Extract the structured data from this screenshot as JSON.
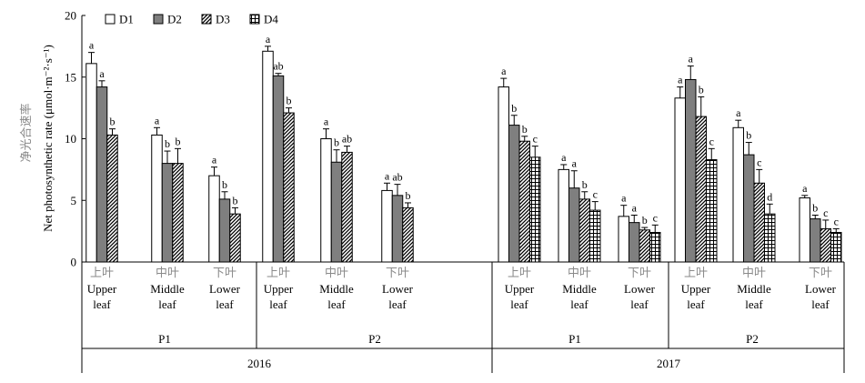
{
  "chart_data": {
    "type": "bar",
    "ylabel_cn": "净光合速率",
    "ylabel": "Net photosynthetic rate (μmol·m⁻²·s⁻¹)",
    "ylim": [
      0,
      20
    ],
    "yticks": [
      "0",
      "5",
      "10",
      "15",
      "20"
    ],
    "legend": {
      "placement": "top-left",
      "entries": [
        {
          "name": "D1",
          "pattern": "white"
        },
        {
          "name": "D2",
          "pattern": "gray"
        },
        {
          "name": "D3",
          "pattern": "diagonal"
        },
        {
          "name": "D4",
          "pattern": "grid"
        }
      ]
    },
    "colors": {
      "D1": "#ffffff",
      "D2": "#7f7f7f",
      "D3": "#000000",
      "D4": "#000000"
    },
    "years": [
      {
        "label": "2016",
        "periods": [
          {
            "label": "P1",
            "groups": [
              {
                "cn": "上叶",
                "en1": "Upper",
                "en2": "leaf",
                "bars": [
                  {
                    "series": "D1",
                    "value": 16.1,
                    "err": 0.9,
                    "sig": "a"
                  },
                  {
                    "series": "D2",
                    "value": 14.2,
                    "err": 0.5,
                    "sig": "a"
                  },
                  {
                    "series": "D3",
                    "value": 10.3,
                    "err": 0.5,
                    "sig": "b"
                  }
                ]
              },
              {
                "cn": "中叶",
                "en1": "Middle",
                "en2": "leaf",
                "bars": [
                  {
                    "series": "D1",
                    "value": 10.3,
                    "err": 0.6,
                    "sig": "a"
                  },
                  {
                    "series": "D2",
                    "value": 8.0,
                    "err": 1.0,
                    "sig": "b"
                  },
                  {
                    "series": "D3",
                    "value": 8.0,
                    "err": 1.2,
                    "sig": "b"
                  }
                ]
              },
              {
                "cn": "下叶",
                "en1": "Lower",
                "en2": "leaf",
                "bars": [
                  {
                    "series": "D1",
                    "value": 7.0,
                    "err": 0.7,
                    "sig": "a"
                  },
                  {
                    "series": "D2",
                    "value": 5.1,
                    "err": 0.6,
                    "sig": "b"
                  },
                  {
                    "series": "D3",
                    "value": 3.9,
                    "err": 0.5,
                    "sig": "b"
                  }
                ]
              }
            ]
          },
          {
            "label": "P2",
            "groups": [
              {
                "cn": "上叶",
                "en1": "Upper",
                "en2": "leaf",
                "bars": [
                  {
                    "series": "D1",
                    "value": 17.1,
                    "err": 0.4,
                    "sig": "a"
                  },
                  {
                    "series": "D2",
                    "value": 15.1,
                    "err": 0.2,
                    "sig": "ab"
                  },
                  {
                    "series": "D3",
                    "value": 12.1,
                    "err": 0.4,
                    "sig": "b"
                  }
                ]
              },
              {
                "cn": "中叶",
                "en1": "Middle",
                "en2": "leaf",
                "bars": [
                  {
                    "series": "D1",
                    "value": 10.0,
                    "err": 0.8,
                    "sig": "a"
                  },
                  {
                    "series": "D2",
                    "value": 8.1,
                    "err": 1.0,
                    "sig": "b"
                  },
                  {
                    "series": "D3",
                    "value": 8.9,
                    "err": 0.5,
                    "sig": "ab"
                  }
                ]
              },
              {
                "cn": "下叶",
                "en1": "Lower",
                "en2": "leaf",
                "bars": [
                  {
                    "series": "D1",
                    "value": 5.8,
                    "err": 0.6,
                    "sig": "a"
                  },
                  {
                    "series": "D2",
                    "value": 5.4,
                    "err": 0.9,
                    "sig": "ab"
                  },
                  {
                    "series": "D3",
                    "value": 4.4,
                    "err": 0.4,
                    "sig": "b"
                  }
                ]
              }
            ]
          }
        ]
      },
      {
        "label": "2017",
        "periods": [
          {
            "label": "P1",
            "groups": [
              {
                "cn": "上叶",
                "en1": "Upper",
                "en2": "leaf",
                "bars": [
                  {
                    "series": "D1",
                    "value": 14.2,
                    "err": 0.7,
                    "sig": "a"
                  },
                  {
                    "series": "D2",
                    "value": 11.1,
                    "err": 0.8,
                    "sig": "b"
                  },
                  {
                    "series": "D3",
                    "value": 9.8,
                    "err": 0.4,
                    "sig": "b"
                  },
                  {
                    "series": "D4",
                    "value": 8.5,
                    "err": 0.9,
                    "sig": "c"
                  }
                ]
              },
              {
                "cn": "中叶",
                "en1": "Middle",
                "en2": "leaf",
                "bars": [
                  {
                    "series": "D1",
                    "value": 7.5,
                    "err": 0.4,
                    "sig": "a"
                  },
                  {
                    "series": "D2",
                    "value": 6.0,
                    "err": 1.4,
                    "sig": "a"
                  },
                  {
                    "series": "D3",
                    "value": 5.1,
                    "err": 0.6,
                    "sig": "b"
                  },
                  {
                    "series": "D4",
                    "value": 4.2,
                    "err": 0.7,
                    "sig": "c"
                  }
                ]
              },
              {
                "cn": "下叶",
                "en1": "Lower",
                "en2": "leaf",
                "bars": [
                  {
                    "series": "D1",
                    "value": 3.7,
                    "err": 0.9,
                    "sig": "a"
                  },
                  {
                    "series": "D2",
                    "value": 3.2,
                    "err": 0.6,
                    "sig": "a"
                  },
                  {
                    "series": "D3",
                    "value": 2.6,
                    "err": 0.2,
                    "sig": "b"
                  },
                  {
                    "series": "D4",
                    "value": 2.4,
                    "err": 0.6,
                    "sig": "c"
                  }
                ]
              }
            ]
          },
          {
            "label": "P2",
            "groups": [
              {
                "cn": "上叶",
                "en1": "Upper",
                "en2": "leaf",
                "bars": [
                  {
                    "series": "D1",
                    "value": 13.3,
                    "err": 0.9,
                    "sig": "a"
                  },
                  {
                    "series": "D2",
                    "value": 14.8,
                    "err": 1.1,
                    "sig": "a"
                  },
                  {
                    "series": "D3",
                    "value": 11.8,
                    "err": 1.6,
                    "sig": "b"
                  },
                  {
                    "series": "D4",
                    "value": 8.3,
                    "err": 0.9,
                    "sig": "c"
                  }
                ]
              },
              {
                "cn": "中叶",
                "en1": "Middle",
                "en2": "leaf",
                "bars": [
                  {
                    "series": "D1",
                    "value": 10.9,
                    "err": 0.6,
                    "sig": "a"
                  },
                  {
                    "series": "D2",
                    "value": 8.7,
                    "err": 1.0,
                    "sig": "b"
                  },
                  {
                    "series": "D3",
                    "value": 6.4,
                    "err": 1.1,
                    "sig": "c"
                  },
                  {
                    "series": "D4",
                    "value": 3.9,
                    "err": 0.8,
                    "sig": "d"
                  }
                ]
              },
              {
                "cn": "下叶",
                "en1": "Lower",
                "en2": "leaf",
                "bars": [
                  {
                    "series": "D1",
                    "value": 5.2,
                    "err": 0.2,
                    "sig": "a"
                  },
                  {
                    "series": "D2",
                    "value": 3.5,
                    "err": 0.3,
                    "sig": "b"
                  },
                  {
                    "series": "D3",
                    "value": 2.7,
                    "err": 0.7,
                    "sig": "c"
                  },
                  {
                    "series": "D4",
                    "value": 2.4,
                    "err": 0.3,
                    "sig": "c"
                  }
                ]
              }
            ]
          }
        ]
      }
    ]
  }
}
